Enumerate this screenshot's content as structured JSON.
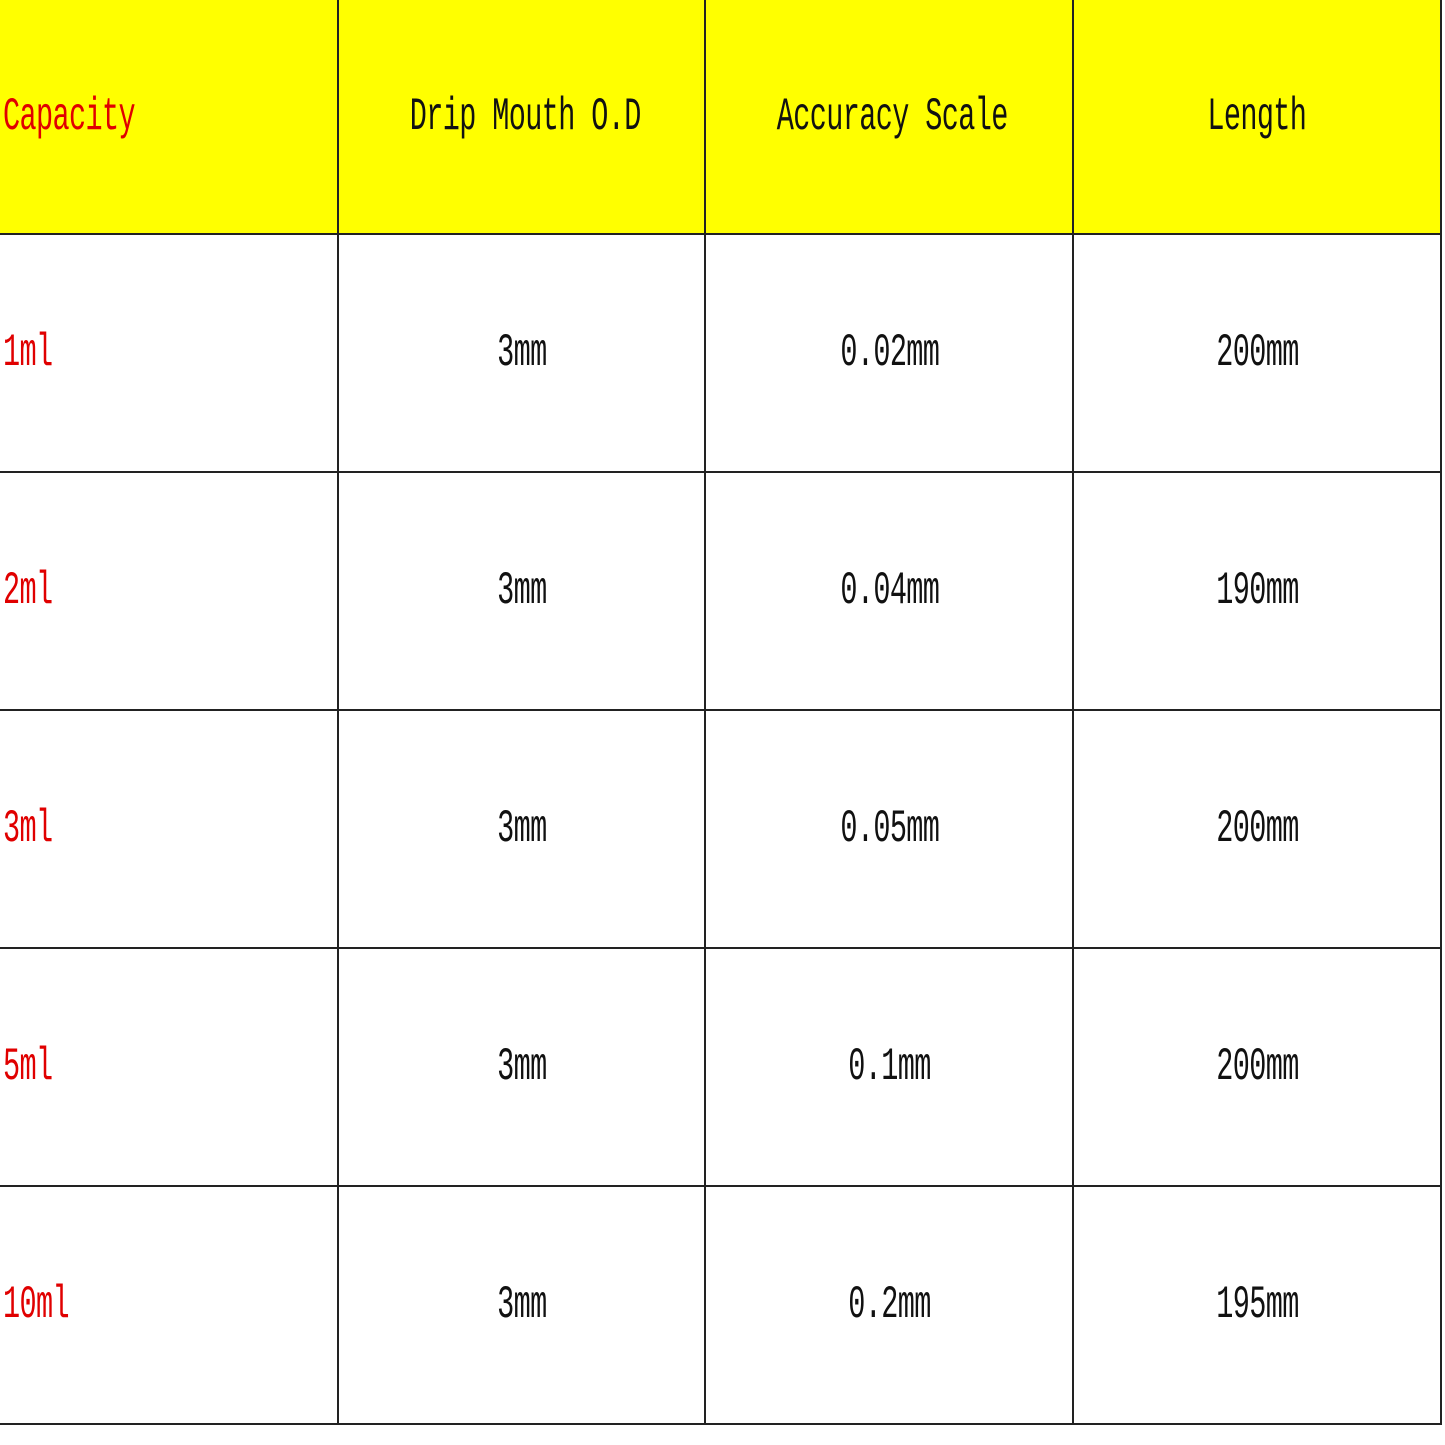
{
  "table": {
    "headers": [
      "Capacity",
      "Drip Mouth O.D",
      "Accuracy Scale",
      "Length"
    ],
    "rows": [
      [
        "1ml",
        "3mm",
        "0.02mm",
        "200mm"
      ],
      [
        "2ml",
        "3mm",
        "0.04mm",
        "190mm"
      ],
      [
        "3ml",
        "3mm",
        "0.05mm",
        "200mm"
      ],
      [
        "5ml",
        "3mm",
        "0.1mm",
        "200mm"
      ],
      [
        "10ml",
        "3mm",
        "0.2mm",
        "195mm"
      ]
    ]
  },
  "colors": {
    "header_bg": "#ffff00",
    "capacity_text": "#e00000",
    "text": "#111111"
  }
}
